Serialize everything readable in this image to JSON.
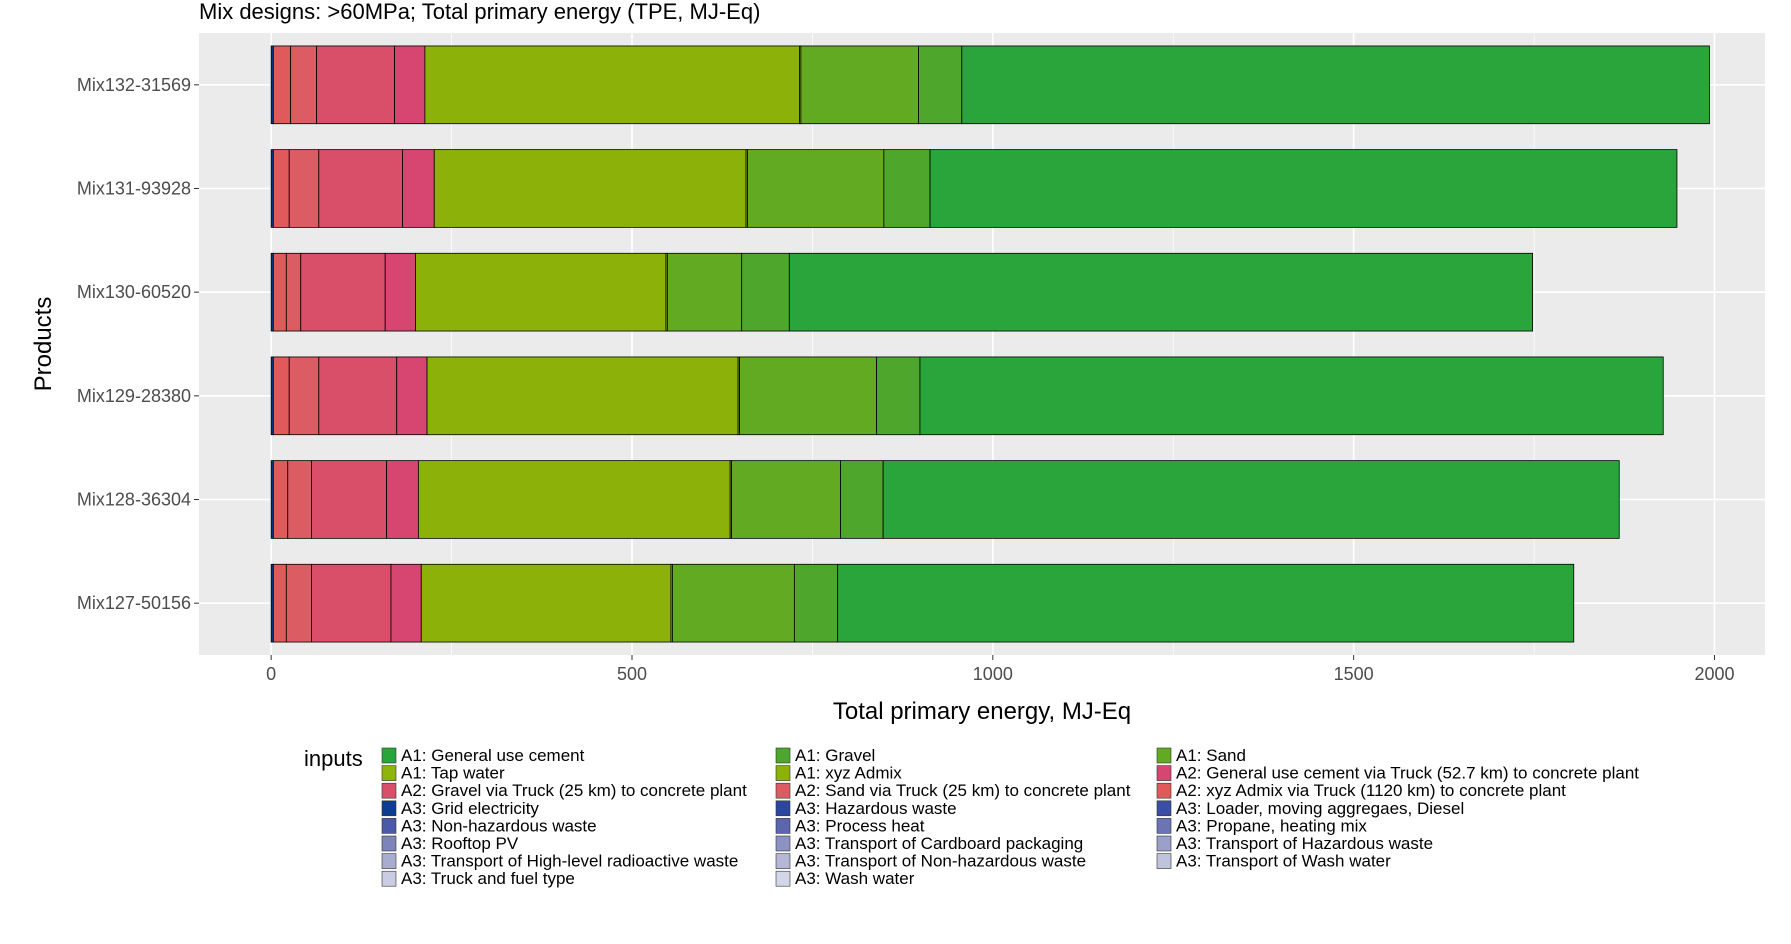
{
  "chart_data": {
    "type": "bar",
    "orientation": "horizontal",
    "stacked": true,
    "title": "Mix designs: >60MPa; Total primary energy (TPE, MJ-Eq)",
    "xlabel": "Total primary energy, MJ-Eq",
    "ylabel": "Products",
    "xlim": [
      -100,
      2070
    ],
    "xticks": [
      0,
      500,
      1000,
      1500,
      2000
    ],
    "grid": true,
    "legend_title": "inputs",
    "legend_position": "bottom",
    "categories": [
      "Mix132-31569",
      "Mix131-93928",
      "Mix130-60520",
      "Mix129-28380",
      "Mix128-36304",
      "Mix127-50156"
    ],
    "series": [
      {
        "name": "A3: Grid electricity",
        "color": "#0b3d91",
        "values": [
          3,
          3,
          3,
          3,
          3,
          3
        ]
      },
      {
        "name": "A2: xyz Admix via Truck (1120 km) to concrete plant",
        "color": "#e05a5a",
        "values": [
          24,
          22,
          18,
          22,
          20,
          18
        ]
      },
      {
        "name": "A2: Sand via Truck (25 km) to concrete plant",
        "color": "#dc5c63",
        "values": [
          36,
          41,
          20,
          41,
          33,
          35
        ]
      },
      {
        "name": "A2: Gravel via Truck (25 km) to concrete plant",
        "color": "#d94f6a",
        "values": [
          108,
          116,
          117,
          108,
          104,
          110
        ]
      },
      {
        "name": "A2: General use cement via Truck (52.7 km) to concrete plant",
        "color": "#d64670",
        "values": [
          42,
          44,
          42,
          42,
          44,
          42
        ]
      },
      {
        "name": "A1: xyz Admix",
        "color": "#8cb20a",
        "values": [
          519,
          432,
          347,
          431,
          432,
          346
        ]
      },
      {
        "name": "A1: Tap water",
        "color": "#8fb40c",
        "values": [
          2,
          2,
          2,
          2,
          2,
          2
        ]
      },
      {
        "name": "A1: Sand",
        "color": "#62aa22",
        "values": [
          163,
          189,
          103,
          190,
          151,
          169
        ]
      },
      {
        "name": "A1: Gravel",
        "color": "#4fa62c",
        "values": [
          60,
          64,
          66,
          60,
          59,
          60
        ]
      },
      {
        "name": "A1: General use cement",
        "color": "#29a53c",
        "values": [
          1036,
          1035,
          1030,
          1030,
          1020,
          1020
        ]
      }
    ],
    "legend_entries": [
      "A1: General use cement",
      "A1: Gravel",
      "A1: Sand",
      "A1: Tap water",
      "A1: xyz Admix",
      "A2: General use cement via Truck (52.7 km) to concrete plant",
      "A2: Gravel via Truck (25 km) to concrete plant",
      "A2: Sand via Truck (25 km) to concrete plant",
      "A2: xyz Admix via Truck (1120 km) to concrete plant",
      "A3: Grid electricity",
      "A3: Hazardous waste",
      "A3: Loader, moving aggregaes, Diesel",
      "A3: Non-hazardous waste",
      "A3: Process heat",
      "A3: Propane, heating mix",
      "A3: Rooftop PV",
      "A3: Transport of Cardboard packaging",
      "A3: Transport of Hazardous waste",
      "A3: Transport of High-level radioactive waste",
      "A3: Transport of Non-hazardous waste",
      "A3: Transport of Wash water",
      "A3: Truck and fuel type",
      "A3: Wash water"
    ],
    "legend_colors": [
      "#29a53c",
      "#4fa62c",
      "#62aa22",
      "#8fb40c",
      "#8cb20a",
      "#d64670",
      "#d94f6a",
      "#dc5c63",
      "#e05a5a",
      "#0b3d91",
      "#2b46a0",
      "#3a4ea6",
      "#4a5aa8",
      "#5b66ae",
      "#6b74b4",
      "#7c84ba",
      "#8c92c2",
      "#9aa0c9",
      "#a8adcf",
      "#b4b8d6",
      "#bfc3dc",
      "#c9cce2",
      "#d3d5e8"
    ]
  }
}
